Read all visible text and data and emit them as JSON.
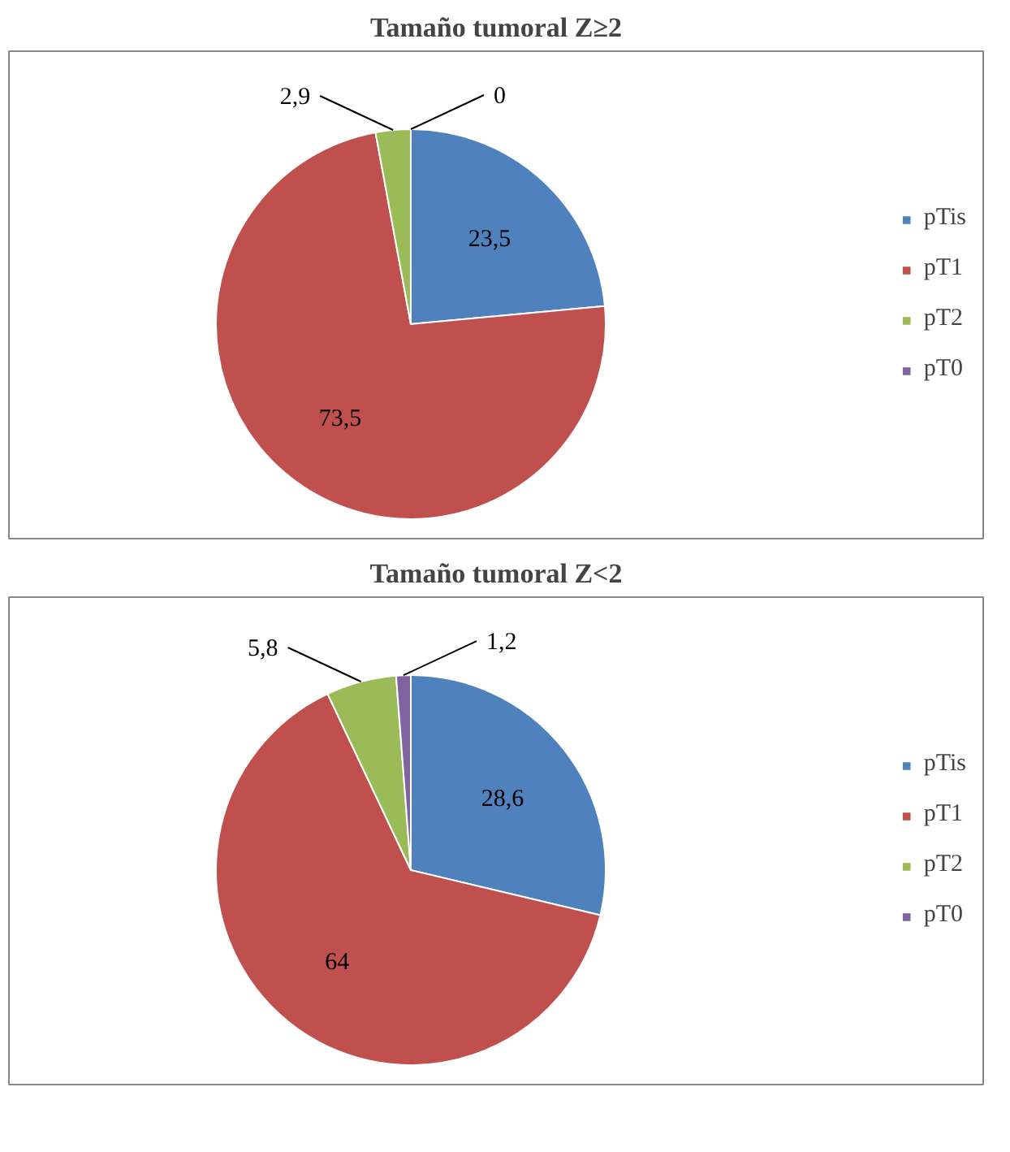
{
  "chart_data": [
    {
      "type": "pie",
      "title": "Tamaño tumoral Z≥2",
      "categories": [
        "pTis",
        "pT1",
        "pT2",
        "pT0"
      ],
      "values": [
        23.5,
        73.5,
        2.9,
        0
      ],
      "colors": [
        "#4f81bd",
        "#c0504d",
        "#9bbb59",
        "#8064a2"
      ],
      "value_labels": [
        "23,5",
        "73,5",
        "2,9",
        "0"
      ],
      "legend": "right"
    },
    {
      "type": "pie",
      "title": "Tamaño tumoral Z<2",
      "categories": [
        "pTis",
        "pT1",
        "pT2",
        "pT0"
      ],
      "values": [
        28.6,
        64,
        5.8,
        1.2
      ],
      "colors": [
        "#4f81bd",
        "#c0504d",
        "#9bbb59",
        "#8064a2"
      ],
      "value_labels": [
        "28,6",
        "64",
        "5,8",
        "1,2"
      ],
      "legend": "right"
    }
  ]
}
